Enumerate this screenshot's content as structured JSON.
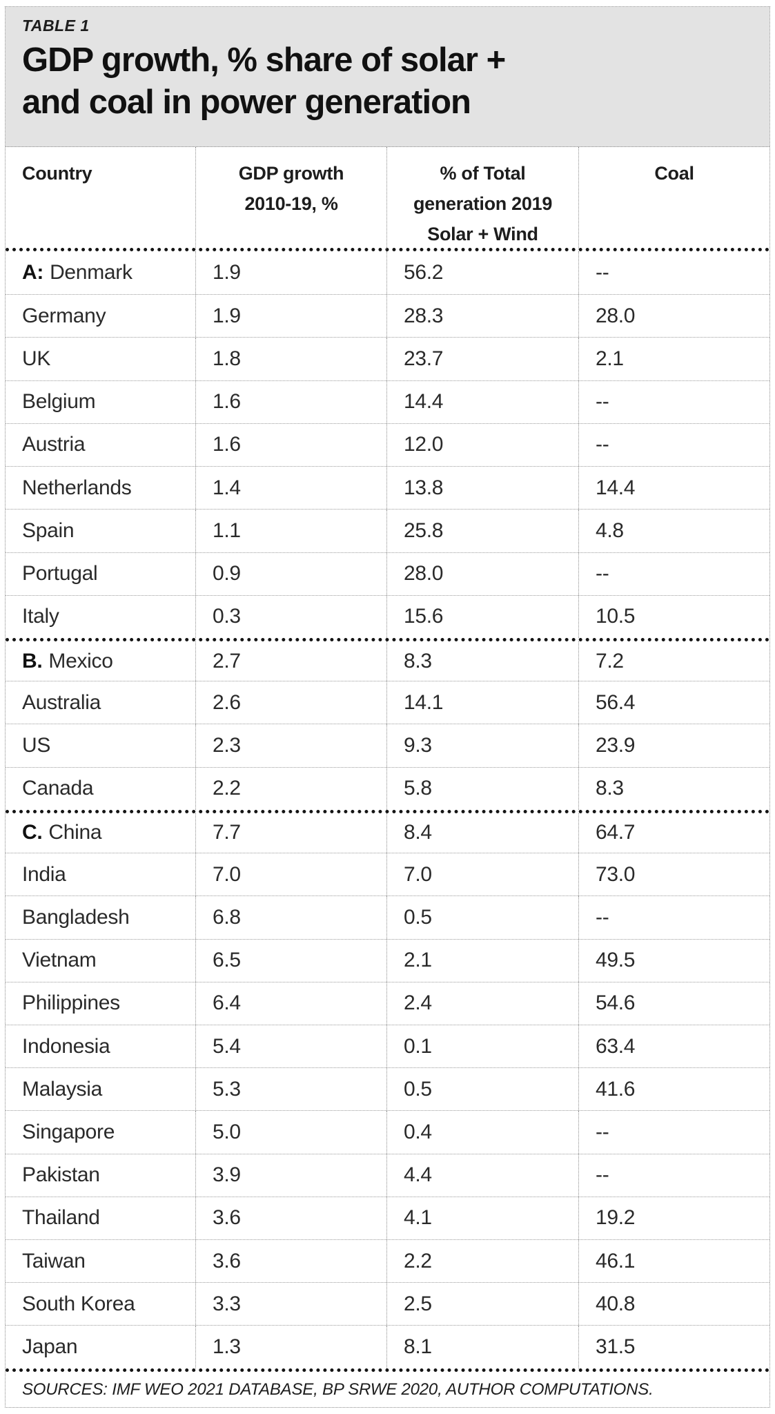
{
  "table_label": "TABLE 1",
  "title": {
    "line1": "GDP growth, % share of solar +",
    "line2": "and coal in power generation"
  },
  "table": {
    "columns": [
      {
        "lines": [
          "Country"
        ]
      },
      {
        "lines": [
          "GDP growth",
          "2010-19, %"
        ]
      },
      {
        "lines": [
          "% of Total",
          "generation 2019",
          "Solar + Wind"
        ]
      },
      {
        "lines": [
          "Coal"
        ]
      }
    ],
    "rows": [
      {
        "group": "A:",
        "country": "Denmark",
        "gdp": "1.9",
        "solar_wind": "56.2",
        "coal": "--",
        "section_start": false
      },
      {
        "group": "",
        "country": "Germany",
        "gdp": "1.9",
        "solar_wind": "28.3",
        "coal": "28.0",
        "section_start": false
      },
      {
        "group": "",
        "country": "UK",
        "gdp": "1.8",
        "solar_wind": "23.7",
        "coal": "2.1",
        "section_start": false
      },
      {
        "group": "",
        "country": "Belgium",
        "gdp": "1.6",
        "solar_wind": "14.4",
        "coal": "--",
        "section_start": false
      },
      {
        "group": "",
        "country": "Austria",
        "gdp": "1.6",
        "solar_wind": "12.0",
        "coal": "--",
        "section_start": false
      },
      {
        "group": "",
        "country": "Netherlands",
        "gdp": "1.4",
        "solar_wind": "13.8",
        "coal": "14.4",
        "section_start": false
      },
      {
        "group": "",
        "country": "Spain",
        "gdp": "1.1",
        "solar_wind": "25.8",
        "coal": "4.8",
        "section_start": false
      },
      {
        "group": "",
        "country": "Portugal",
        "gdp": "0.9",
        "solar_wind": "28.0",
        "coal": "--",
        "section_start": false
      },
      {
        "group": "",
        "country": "Italy",
        "gdp": "0.3",
        "solar_wind": "15.6",
        "coal": "10.5",
        "section_start": false
      },
      {
        "group": "B.",
        "country": "Mexico",
        "gdp": "2.7",
        "solar_wind": "8.3",
        "coal": "7.2",
        "section_start": true
      },
      {
        "group": "",
        "country": "Australia",
        "gdp": "2.6",
        "solar_wind": "14.1",
        "coal": "56.4",
        "section_start": false
      },
      {
        "group": "",
        "country": "US",
        "gdp": "2.3",
        "solar_wind": "9.3",
        "coal": "23.9",
        "section_start": false
      },
      {
        "group": "",
        "country": "Canada",
        "gdp": "2.2",
        "solar_wind": "5.8",
        "coal": "8.3",
        "section_start": false
      },
      {
        "group": "C.",
        "country": "China",
        "gdp": "7.7",
        "solar_wind": "8.4",
        "coal": "64.7",
        "section_start": true
      },
      {
        "group": "",
        "country": "India",
        "gdp": "7.0",
        "solar_wind": "7.0",
        "coal": "73.0",
        "section_start": false
      },
      {
        "group": "",
        "country": "Bangladesh",
        "gdp": "6.8",
        "solar_wind": "0.5",
        "coal": "--",
        "section_start": false
      },
      {
        "group": "",
        "country": "Vietnam",
        "gdp": "6.5",
        "solar_wind": "2.1",
        "coal": "49.5",
        "section_start": false
      },
      {
        "group": "",
        "country": "Philippines",
        "gdp": "6.4",
        "solar_wind": "2.4",
        "coal": "54.6",
        "section_start": false
      },
      {
        "group": "",
        "country": "Indonesia",
        "gdp": "5.4",
        "solar_wind": "0.1",
        "coal": "63.4",
        "section_start": false
      },
      {
        "group": "",
        "country": "Malaysia",
        "gdp": "5.3",
        "solar_wind": "0.5",
        "coal": "41.6",
        "section_start": false
      },
      {
        "group": "",
        "country": "Singapore",
        "gdp": "5.0",
        "solar_wind": "0.4",
        "coal": "--",
        "section_start": false
      },
      {
        "group": "",
        "country": "Pakistan",
        "gdp": "3.9",
        "solar_wind": "4.4",
        "coal": "--",
        "section_start": false
      },
      {
        "group": "",
        "country": "Thailand",
        "gdp": "3.6",
        "solar_wind": "4.1",
        "coal": "19.2",
        "section_start": false
      },
      {
        "group": "",
        "country": "Taiwan",
        "gdp": "3.6",
        "solar_wind": "2.2",
        "coal": "46.1",
        "section_start": false
      },
      {
        "group": "",
        "country": "South Korea",
        "gdp": "3.3",
        "solar_wind": "2.5",
        "coal": "40.8",
        "section_start": false
      },
      {
        "group": "",
        "country": "Japan",
        "gdp": "1.3",
        "solar_wind": "8.1",
        "coal": "31.5",
        "section_start": false
      }
    ]
  },
  "sources": "SOURCES: IMF WEO 2021 DATABASE, BP SRWE 2020, AUTHOR COMPUTATIONS.",
  "colors": {
    "title_bg": "#e3e3e3",
    "text": "#1d1d1d",
    "thin_rule": "#9a9a9a",
    "thick_rule": "#141414"
  },
  "chart_data": {
    "type": "table",
    "title": "GDP growth, % share of solar + wind and coal in power generation",
    "columns": [
      "Country",
      "GDP growth 2010-19, %",
      "% of Total generation 2019 Solar + Wind",
      "Coal"
    ],
    "group_labels": [
      "A",
      "B",
      "C"
    ],
    "rows": [
      [
        "A: Denmark",
        1.9,
        56.2,
        null
      ],
      [
        "Germany",
        1.9,
        28.3,
        28.0
      ],
      [
        "UK",
        1.8,
        23.7,
        2.1
      ],
      [
        "Belgium",
        1.6,
        14.4,
        null
      ],
      [
        "Austria",
        1.6,
        12.0,
        null
      ],
      [
        "Netherlands",
        1.4,
        13.8,
        14.4
      ],
      [
        "Spain",
        1.1,
        25.8,
        4.8
      ],
      [
        "Portugal",
        0.9,
        28.0,
        null
      ],
      [
        "Italy",
        0.3,
        15.6,
        10.5
      ],
      [
        "B. Mexico",
        2.7,
        8.3,
        7.2
      ],
      [
        "Australia",
        2.6,
        14.1,
        56.4
      ],
      [
        "US",
        2.3,
        9.3,
        23.9
      ],
      [
        "Canada",
        2.2,
        5.8,
        8.3
      ],
      [
        "C. China",
        7.7,
        8.4,
        64.7
      ],
      [
        "India",
        7.0,
        7.0,
        73.0
      ],
      [
        "Bangladesh",
        6.8,
        0.5,
        null
      ],
      [
        "Vietnam",
        6.5,
        2.1,
        49.5
      ],
      [
        "Philippines",
        6.4,
        2.4,
        54.6
      ],
      [
        "Indonesia",
        5.4,
        0.1,
        63.4
      ],
      [
        "Malaysia",
        5.3,
        0.5,
        41.6
      ],
      [
        "Singapore",
        5.0,
        0.4,
        null
      ],
      [
        "Pakistan",
        3.9,
        4.4,
        null
      ],
      [
        "Thailand",
        3.6,
        4.1,
        19.2
      ],
      [
        "Taiwan",
        3.6,
        2.2,
        46.1
      ],
      [
        "South Korea",
        3.3,
        2.5,
        40.8
      ],
      [
        "Japan",
        1.3,
        8.1,
        31.5
      ]
    ],
    "missing_value_marker": "--"
  }
}
